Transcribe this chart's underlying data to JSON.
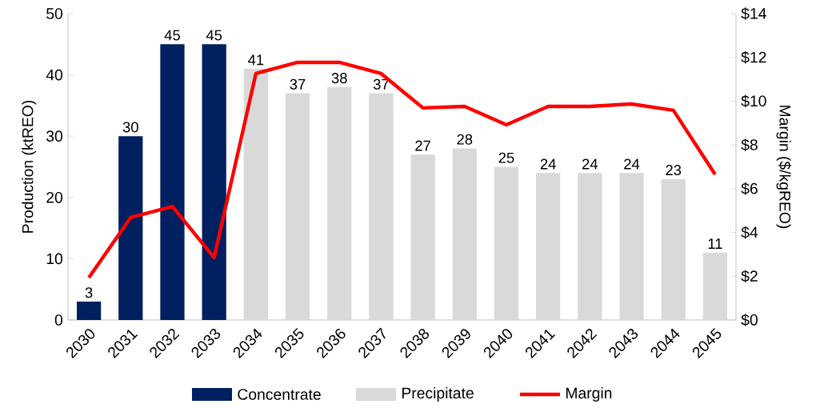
{
  "chart_data": {
    "type": "bar",
    "ylabel": "Production (ktREO)",
    "y2label": "Margin ($/kgREO)",
    "categories": [
      "2030",
      "2031",
      "2032",
      "2033",
      "2034",
      "2035",
      "2036",
      "2037",
      "2038",
      "2039",
      "2040",
      "2041",
      "2042",
      "2043",
      "2044",
      "2045"
    ],
    "series": [
      {
        "name": "Concentrate",
        "color": "#002060",
        "values": [
          3,
          30,
          45,
          45,
          null,
          null,
          null,
          null,
          null,
          null,
          null,
          null,
          null,
          null,
          null,
          null
        ],
        "value_labels": [
          "3",
          "30",
          "45",
          "45",
          null,
          null,
          null,
          null,
          null,
          null,
          null,
          null,
          null,
          null,
          null,
          null
        ]
      },
      {
        "name": "Precipitate",
        "color": "#d9d9d9",
        "values": [
          null,
          null,
          null,
          null,
          41,
          37,
          38,
          37,
          27,
          28,
          25,
          24,
          24,
          24,
          23,
          11
        ],
        "value_labels": [
          null,
          null,
          null,
          null,
          "41",
          "37",
          "38",
          "37",
          "27",
          "28",
          "25",
          "24",
          "24",
          "24",
          "23",
          "11"
        ]
      },
      {
        "name": "Margin",
        "color": "#ff0000",
        "type": "line",
        "axis": "y2",
        "values": [
          1.94,
          4.68,
          5.19,
          2.85,
          11.26,
          11.77,
          11.77,
          11.26,
          9.69,
          9.76,
          8.92,
          9.76,
          9.76,
          9.87,
          9.58,
          6.65
        ]
      }
    ],
    "ylim": [
      0,
      50
    ],
    "yticks": [
      0,
      10,
      20,
      30,
      40,
      50
    ],
    "y2lim": [
      0,
      14
    ],
    "y2ticks": [
      {
        "value": 0,
        "label": "$0"
      },
      {
        "value": 2,
        "label": "$2"
      },
      {
        "value": 4,
        "label": "$4"
      },
      {
        "value": 6,
        "label": "$6"
      },
      {
        "value": 8,
        "label": "$8"
      },
      {
        "value": 10,
        "label": "$10"
      },
      {
        "value": 12,
        "label": "$12"
      },
      {
        "value": 14,
        "label": "$14"
      }
    ],
    "legend": "bottom",
    "grid": false,
    "marker": "none",
    "line_style": "solid"
  }
}
